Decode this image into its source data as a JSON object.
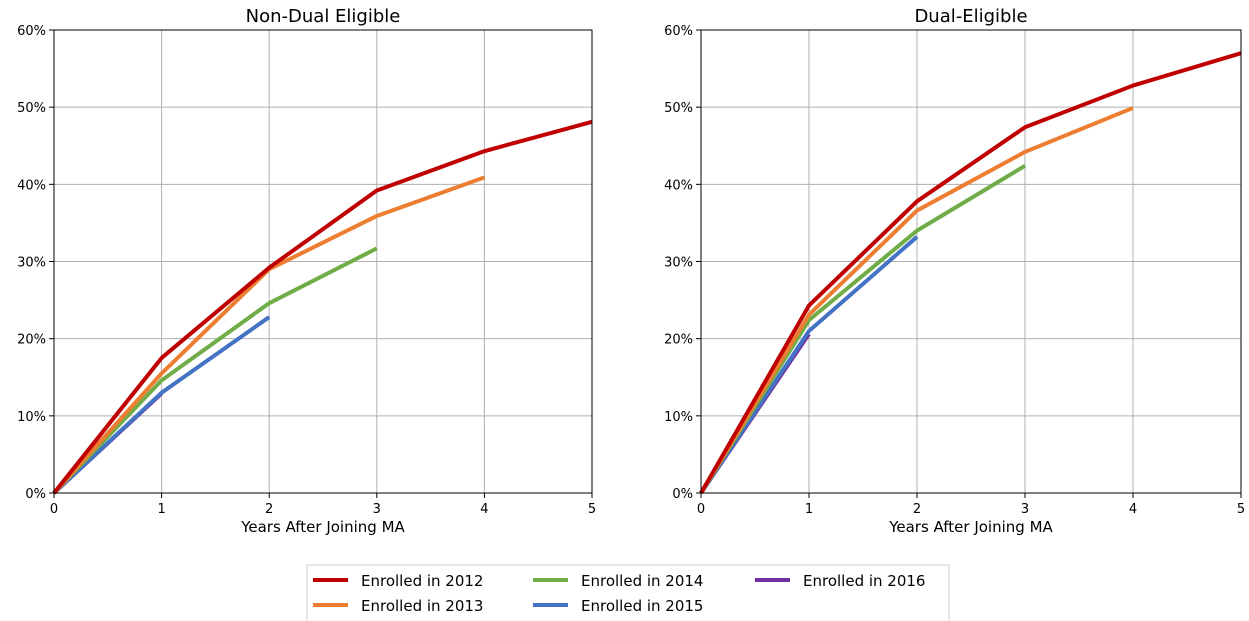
{
  "colors": {
    "2012": "#c00000",
    "2013": "#ed7d31",
    "2014": "#70ad47",
    "2015": "#4472c4",
    "2016": "#7030a0",
    "grid": "#b0b0b0"
  },
  "legend": {
    "items": [
      "Enrolled in 2012",
      "Enrolled in 2013",
      "Enrolled in 2014",
      "Enrolled in 2015",
      "Enrolled in 2016"
    ],
    "placement": "bottom-center"
  },
  "chart_data": [
    {
      "type": "line",
      "title": "Non-Dual Eligible",
      "xlabel": "Years After Joining MA",
      "ylabel": "",
      "xlim": [
        0,
        5
      ],
      "ylim": [
        0,
        60
      ],
      "x_ticks": [
        "0",
        "1",
        "2",
        "3",
        "4",
        "5"
      ],
      "y_ticks": [
        "0%",
        "10%",
        "20%",
        "30%",
        "40%",
        "50%",
        "60%"
      ],
      "grid": true,
      "series": [
        {
          "name": "Enrolled in 2012",
          "color": "#c00000",
          "x": [
            0,
            1,
            2,
            3,
            4,
            5
          ],
          "y": [
            0,
            17.5,
            29.2,
            39.2,
            44.3,
            48.1
          ]
        },
        {
          "name": "Enrolled in 2013",
          "color": "#ed7d31",
          "x": [
            0,
            1,
            2,
            3,
            4
          ],
          "y": [
            0,
            15.5,
            29.0,
            35.9,
            40.9
          ]
        },
        {
          "name": "Enrolled in 2014",
          "color": "#70ad47",
          "x": [
            0,
            1,
            2,
            3
          ],
          "y": [
            0,
            14.6,
            24.6,
            31.7
          ]
        },
        {
          "name": "Enrolled in 2015",
          "color": "#4472c4",
          "x": [
            0,
            1,
            2
          ],
          "y": [
            0,
            13.0,
            22.8
          ]
        },
        {
          "name": "Enrolled in 2016",
          "color": "#7030a0",
          "x": [
            0,
            1
          ],
          "y": [
            0,
            12.9
          ]
        }
      ]
    },
    {
      "type": "line",
      "title": "Dual-Eligible",
      "xlabel": "Years After Joining MA",
      "ylabel": "",
      "xlim": [
        0,
        5
      ],
      "ylim": [
        0,
        60
      ],
      "x_ticks": [
        "0",
        "1",
        "2",
        "3",
        "4",
        "5"
      ],
      "y_ticks": [
        "0%",
        "10%",
        "20%",
        "30%",
        "40%",
        "50%",
        "60%"
      ],
      "grid": true,
      "series": [
        {
          "name": "Enrolled in 2012",
          "color": "#c00000",
          "x": [
            0,
            1,
            2,
            3,
            4,
            5
          ],
          "y": [
            0,
            24.3,
            37.8,
            47.4,
            52.8,
            57.0
          ]
        },
        {
          "name": "Enrolled in 2013",
          "color": "#ed7d31",
          "x": [
            0,
            1,
            2,
            3,
            4
          ],
          "y": [
            0,
            23.1,
            36.6,
            44.2,
            49.9
          ]
        },
        {
          "name": "Enrolled in 2014",
          "color": "#70ad47",
          "x": [
            0,
            1,
            2,
            3
          ],
          "y": [
            0,
            22.4,
            34.0,
            42.4
          ]
        },
        {
          "name": "Enrolled in 2015",
          "color": "#4472c4",
          "x": [
            0,
            1,
            2
          ],
          "y": [
            0,
            21.0,
            33.2
          ]
        },
        {
          "name": "Enrolled in 2016",
          "color": "#7030a0",
          "x": [
            0,
            1
          ],
          "y": [
            0,
            20.6
          ]
        }
      ]
    }
  ]
}
